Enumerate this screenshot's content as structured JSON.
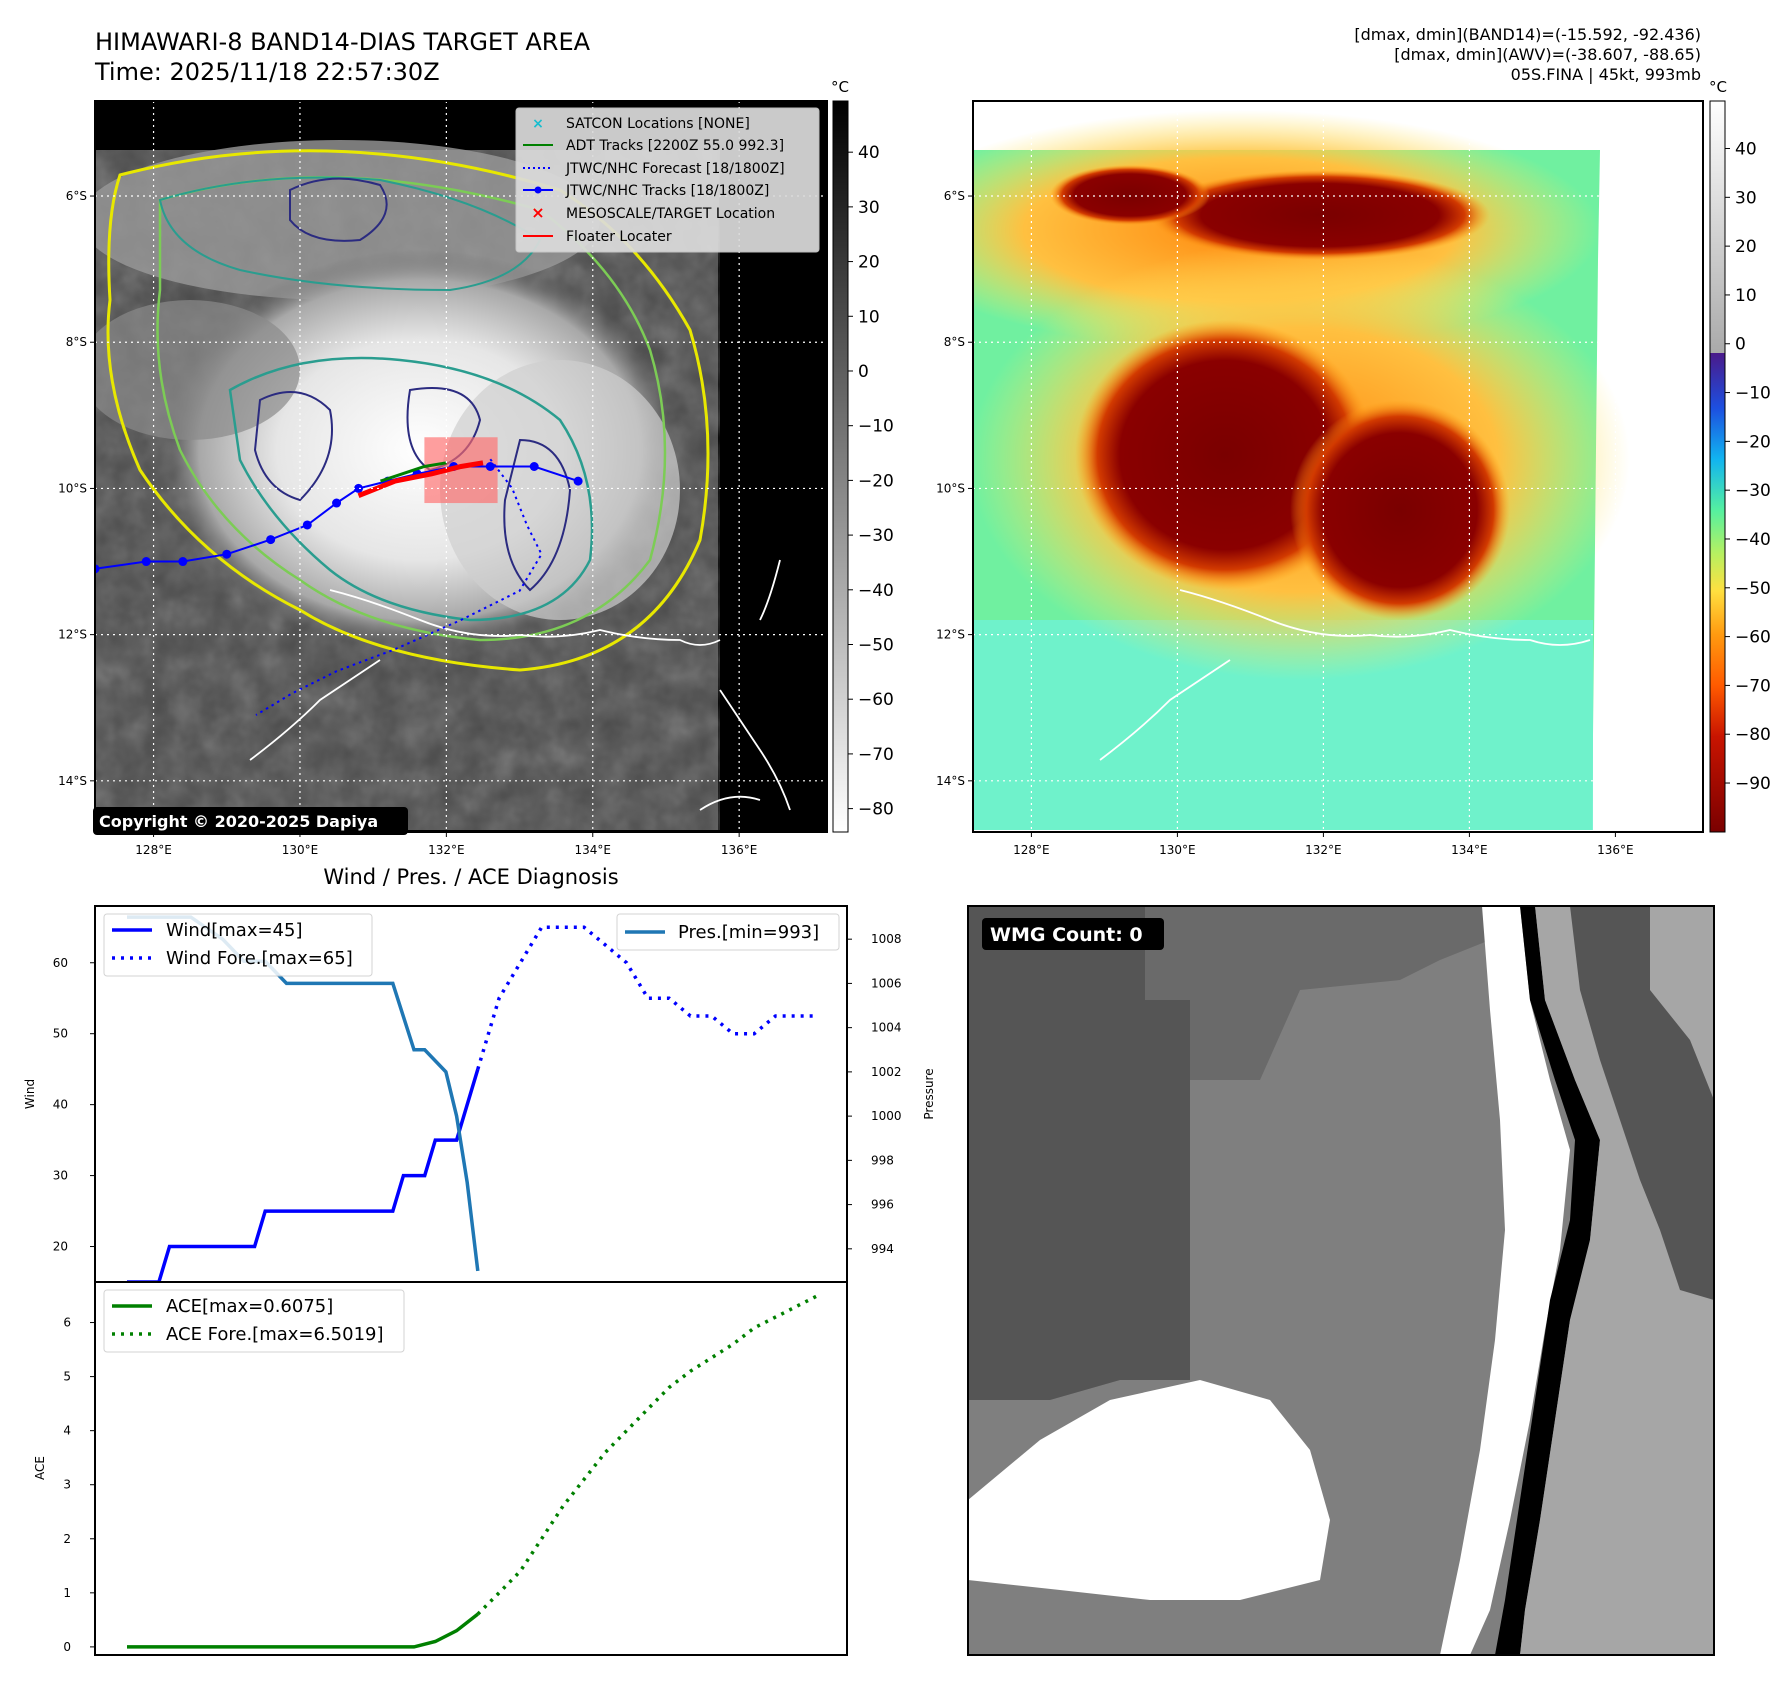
{
  "header": {
    "title": "HIMAWARI-8 BAND14-DIAS TARGET AREA",
    "time": "Time: 2025/11/18 22:57:30Z",
    "stats_band14": "[dmax, dmin](BAND14)=(-15.592, -92.436)",
    "stats_awv": "[dmax, dmin](AWV)=(-38.607, -88.65)",
    "storm_info": "05S.FINA | 45kt, 993mb"
  },
  "colors": {
    "wind": "#0000ff",
    "pressure": "#1f77b4",
    "ace": "#008000",
    "track_jtwc": "#0000ff",
    "adt": "#008000",
    "floater": "#ff0000",
    "satcon": "#17becf",
    "contour_yellow": "#e8e800",
    "contour_green": "#7ccc55",
    "contour_teal": "#2a9d8f",
    "contour_navy": "#2b2b80"
  },
  "map_left": {
    "legend": [
      {
        "label": "SATCON Locations [NONE]",
        "icon": "cyan-x-marker"
      },
      {
        "label": "ADT Tracks [2200Z 55.0 992.3]",
        "icon": "green-line"
      },
      {
        "label": "JTWC/NHC Forecast [18/1800Z]",
        "icon": "blue-dotted-line"
      },
      {
        "label": "JTWC/NHC Tracks [18/1800Z]",
        "icon": "blue-line-dot"
      },
      {
        "label": "MESOSCALE/TARGET Location",
        "icon": "red-x-marker"
      },
      {
        "label": "Floater Locater",
        "icon": "red-line"
      }
    ],
    "copyright": "Copyright © 2020-2025 Dapiya",
    "colorbar_unit": "°C",
    "colorbar_ticks": [
      "40",
      "30",
      "20",
      "10",
      "0",
      "−10",
      "−20",
      "−30",
      "−40",
      "−50",
      "−60",
      "−70",
      "−80"
    ],
    "jtwc_track": [
      [
        127.2,
        -11.1
      ],
      [
        127.9,
        -11.0
      ],
      [
        128.4,
        -11.0
      ],
      [
        129.0,
        -10.9
      ],
      [
        129.6,
        -10.7
      ],
      [
        130.1,
        -10.5
      ],
      [
        130.5,
        -10.2
      ],
      [
        130.8,
        -10.0
      ],
      [
        131.2,
        -9.9
      ],
      [
        131.6,
        -9.8
      ],
      [
        132.1,
        -9.7
      ],
      [
        132.6,
        -9.7
      ],
      [
        133.2,
        -9.7
      ],
      [
        133.8,
        -9.9
      ]
    ],
    "jtwc_forecast": [
      [
        132.6,
        -9.6
      ],
      [
        132.9,
        -10.0
      ],
      [
        133.1,
        -10.5
      ],
      [
        133.3,
        -10.9
      ],
      [
        133.0,
        -11.4
      ],
      [
        132.2,
        -11.8
      ],
      [
        131.3,
        -12.2
      ],
      [
        130.5,
        -12.5
      ],
      [
        129.9,
        -12.8
      ],
      [
        129.4,
        -13.1
      ]
    ],
    "adt_track": [
      [
        131.1,
        -9.9
      ],
      [
        131.4,
        -9.8
      ],
      [
        131.7,
        -9.7
      ],
      [
        132.0,
        -9.65
      ]
    ],
    "floater_track": [
      [
        130.8,
        -10.1
      ],
      [
        131.3,
        -9.9
      ],
      [
        131.8,
        -9.8
      ],
      [
        132.2,
        -9.7
      ],
      [
        132.5,
        -9.65
      ]
    ],
    "target_box": {
      "lon": [
        131.7,
        132.7
      ],
      "lat": [
        -9.3,
        -10.2
      ]
    }
  },
  "map_right": {
    "colorbar_unit": "°C",
    "colorbar_ticks": [
      "40",
      "30",
      "20",
      "10",
      "0",
      "−10",
      "−20",
      "−30",
      "−40",
      "−50",
      "−60",
      "−70",
      "−80",
      "−90"
    ]
  },
  "map_axes": {
    "xticks": [
      "128°E",
      "130°E",
      "132°E",
      "134°E",
      "136°E"
    ],
    "xvals": [
      128,
      130,
      132,
      134,
      136
    ],
    "yticks": [
      "6°S",
      "8°S",
      "10°S",
      "12°S",
      "14°S"
    ],
    "yvals": [
      -6,
      -8,
      -10,
      -12,
      -14
    ],
    "lon_range": [
      127.2,
      137.2
    ],
    "lat_range": [
      -14.7,
      -4.7
    ]
  },
  "wmg": {
    "label": "WMG Count: 0"
  },
  "chart_data": [
    {
      "type": "line",
      "title": "Wind / Pres. / ACE Diagnosis",
      "ylabel": "Wind",
      "ylabel_right": "Pressure",
      "x": [
        0,
        1,
        2,
        3,
        4,
        5,
        6,
        7,
        8,
        9,
        10,
        11,
        12,
        13,
        14,
        15,
        16,
        17,
        18,
        19,
        20,
        21,
        22,
        23,
        24,
        25,
        26,
        27,
        28,
        29,
        30,
        31,
        32,
        33,
        34,
        35,
        36,
        37,
        38,
        39,
        40,
        41,
        42,
        43,
        44,
        45,
        46,
        47,
        48,
        49,
        50,
        51,
        52,
        53,
        54,
        55,
        56,
        57,
        58,
        59,
        60,
        61,
        62,
        63,
        64,
        65
      ],
      "ylim": [
        15,
        68
      ],
      "ylim_right": [
        992.5,
        1009.5
      ],
      "yticks": [
        20,
        30,
        40,
        50,
        60
      ],
      "yticks_right": [
        994,
        996,
        998,
        1000,
        1002,
        1004,
        1006,
        1008
      ],
      "legend_left": [
        "Wind[max=45]",
        "Wind Fore.[max=65]"
      ],
      "legend_right": [
        "Pres.[min=993]"
      ],
      "series": [
        {
          "name": "Wind[max=45]",
          "style": "solid",
          "x": [
            0,
            1,
            2,
            3,
            4,
            5,
            6,
            7,
            8,
            9,
            10,
            11,
            12,
            13,
            14,
            15,
            16,
            17,
            18,
            19,
            20,
            21,
            22,
            23,
            24,
            25,
            26,
            27,
            28,
            29,
            30,
            31,
            32,
            33
          ],
          "values": [
            15,
            15,
            15,
            15,
            20,
            20,
            20,
            20,
            20,
            20,
            20,
            20,
            20,
            25,
            25,
            25,
            25,
            25,
            25,
            25,
            25,
            25,
            25,
            25,
            25,
            25,
            30,
            30,
            30,
            35,
            35,
            35,
            40,
            45
          ]
        },
        {
          "name": "Wind Fore.[max=65]",
          "style": "dotted",
          "x": [
            33,
            35,
            37,
            39,
            41,
            43,
            45,
            47,
            49,
            51,
            53,
            55,
            57,
            59,
            61,
            63,
            65
          ],
          "values": [
            45,
            55,
            60,
            65,
            65,
            65,
            62.5,
            60,
            55,
            55,
            52.5,
            52.5,
            50,
            50,
            52.5,
            52.5,
            52.5
          ]
        },
        {
          "name": "Pres.[min=993]",
          "style": "solid",
          "axis": "right",
          "x": [
            0,
            3,
            6,
            9,
            11,
            13,
            15,
            17,
            19,
            22,
            25,
            27,
            28,
            30,
            31,
            32,
            33
          ],
          "values": [
            1009,
            1009,
            1009,
            1008,
            1007,
            1007,
            1006,
            1006,
            1006,
            1006,
            1006,
            1003,
            1003,
            1002,
            1000,
            997,
            993
          ]
        }
      ]
    },
    {
      "type": "line",
      "ylabel": "ACE",
      "ylim": [
        -0.15,
        6.75
      ],
      "yticks": [
        0,
        1,
        2,
        3,
        4,
        5,
        6
      ],
      "series": [
        {
          "name": "ACE[max=0.6075]",
          "style": "solid",
          "x": [
            0,
            5,
            10,
            15,
            20,
            25,
            27,
            29,
            31,
            33
          ],
          "values": [
            0,
            0,
            0,
            0,
            0,
            0,
            0,
            0.1,
            0.3,
            0.6075
          ]
        },
        {
          "name": "ACE Fore.[max=6.5019]",
          "style": "dotted",
          "x": [
            33,
            35,
            37,
            39,
            41,
            43,
            45,
            47,
            49,
            51,
            53,
            55,
            57,
            59,
            61,
            63,
            65
          ],
          "values": [
            0.6075,
            1.0,
            1.4,
            2.0,
            2.6,
            3.1,
            3.6,
            4.0,
            4.4,
            4.8,
            5.1,
            5.35,
            5.6,
            5.9,
            6.1,
            6.3,
            6.5019
          ]
        }
      ]
    }
  ]
}
